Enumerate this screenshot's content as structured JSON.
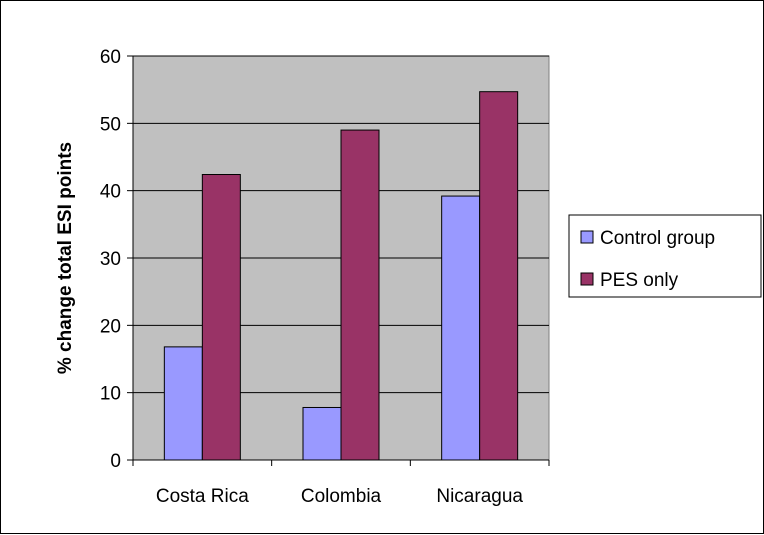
{
  "chart_data": {
    "type": "bar",
    "categories": [
      "Costa Rica",
      "Colombia",
      "Nicaragua"
    ],
    "series": [
      {
        "name": "Control group",
        "values": [
          16.8,
          7.8,
          39.2
        ],
        "color": "#9999ff"
      },
      {
        "name": "PES only",
        "values": [
          42.4,
          49.0,
          54.7
        ],
        "color": "#993366"
      }
    ],
    "ylabel": "% change total ESI points",
    "xlabel": "",
    "ylim": [
      0,
      60
    ],
    "yticks": [
      0,
      10,
      20,
      30,
      40,
      50,
      60
    ],
    "grid": true,
    "legend": "right",
    "plot_background": "#c0c0c0"
  }
}
